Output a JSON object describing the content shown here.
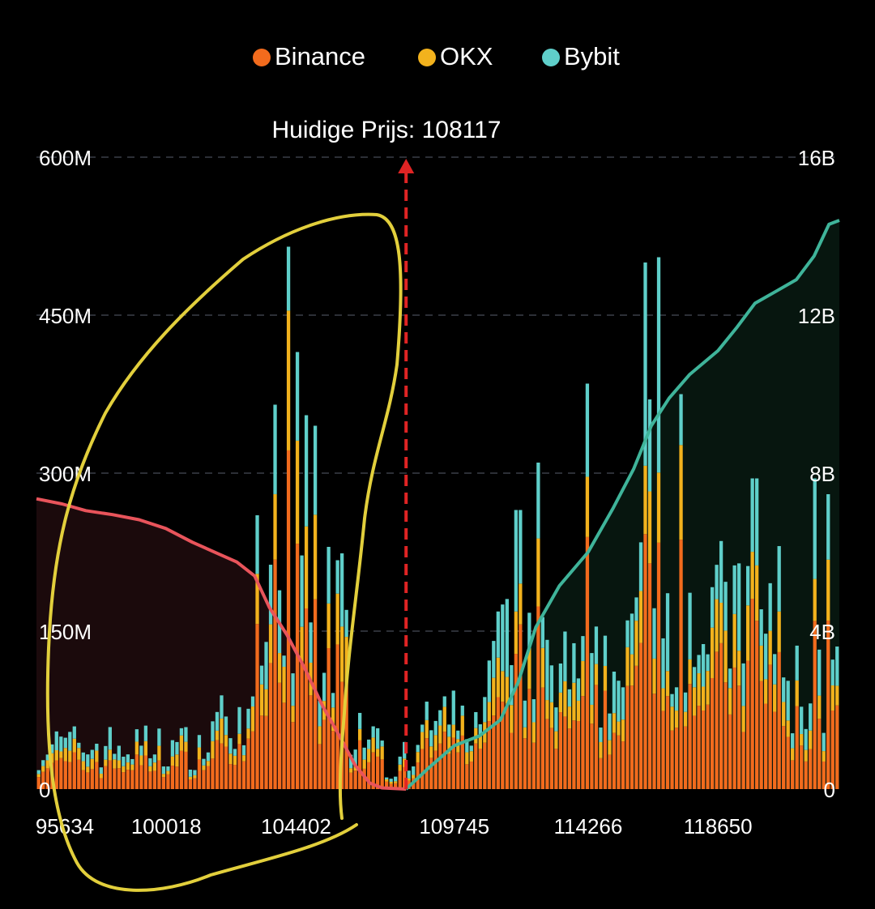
{
  "chart_data": {
    "type": "bar",
    "stacked": true,
    "legend": {
      "position": "top-center",
      "entries": [
        {
          "name": "Binance",
          "color": "#f26b1d"
        },
        {
          "name": "OKX",
          "color": "#f2b21d"
        },
        {
          "name": "Bybit",
          "color": "#5fcfca"
        }
      ]
    },
    "current_price": {
      "label": "Huidige Prijs: 108117",
      "value": 108117,
      "color": "#e02424"
    },
    "x_axis": {
      "min": 95634,
      "max": 122750,
      "tick_labels": [
        "95634",
        "100018",
        "104402",
        "109745",
        "114266",
        "118650"
      ],
      "tick_values": [
        95634,
        100018,
        104402,
        109745,
        114266,
        118650
      ]
    },
    "y_axis_left": {
      "min": 0,
      "max": 600000000,
      "tick_labels": [
        "0",
        "150M",
        "300M",
        "450M",
        "600M"
      ],
      "tick_values": [
        0,
        150000000,
        300000000,
        450000000,
        600000000
      ]
    },
    "y_axis_right": {
      "min": 0,
      "max": 16000000000,
      "tick_labels": [
        "0",
        "4B",
        "8B",
        "12B",
        "16B"
      ],
      "tick_values": [
        0,
        4000000000,
        8000000000,
        12000000000,
        16000000000
      ]
    },
    "grid": {
      "horizontal": true,
      "style": "dashed",
      "color": "#3a3f48"
    },
    "cumulative_short": {
      "name": "cumulative short liquidation",
      "color": "#e8545b",
      "fill": "#1b0a0c",
      "axis": "right",
      "points": [
        [
          95634,
          7350000000.0
        ],
        [
          96500,
          7220000000.0
        ],
        [
          97300,
          7050000000.0
        ],
        [
          98200,
          6950000000.0
        ],
        [
          99100,
          6820000000.0
        ],
        [
          100000,
          6600000000.0
        ],
        [
          100900,
          6250000000.0
        ],
        [
          101800,
          5950000000.0
        ],
        [
          102400,
          5750000000.0
        ],
        [
          103000,
          5400000000.0
        ],
        [
          103500,
          4600000000.0
        ],
        [
          104100,
          3900000000.0
        ],
        [
          104700,
          3050000000.0
        ],
        [
          105300,
          2100000000.0
        ],
        [
          105900,
          1300000000.0
        ],
        [
          106400,
          600000000.0
        ],
        [
          106900,
          150000000.0
        ],
        [
          107300,
          30000000.0
        ],
        [
          108117,
          0
        ]
      ]
    },
    "cumulative_long": {
      "name": "cumulative long liquidation",
      "color": "#3fb49a",
      "fill": "#07160f",
      "axis": "right",
      "points": [
        [
          108117,
          0
        ],
        [
          108900,
          550000000.0
        ],
        [
          109745,
          1100000000.0
        ],
        [
          110600,
          1350000000.0
        ],
        [
          111300,
          1750000000.0
        ],
        [
          111900,
          2700000000.0
        ],
        [
          112500,
          4100000000.0
        ],
        [
          113300,
          5150000000.0
        ],
        [
          114266,
          6000000000.0
        ],
        [
          115100,
          7100000000.0
        ],
        [
          115800,
          8100000000.0
        ],
        [
          116400,
          9200000000.0
        ],
        [
          117000,
          9900000000.0
        ],
        [
          117700,
          10500000000.0
        ],
        [
          118650,
          11100000000.0
        ],
        [
          119300,
          11700000000.0
        ],
        [
          119900,
          12300000000.0
        ],
        [
          120600,
          12600000000.0
        ],
        [
          121300,
          12900000000.0
        ],
        [
          121900,
          13500000000.0
        ],
        [
          122400,
          14300000000.0
        ],
        [
          122750,
          14400000000.0
        ]
      ]
    },
    "bar_spec": {
      "note": "",
      "count": 180
    },
    "bars": {
      "peaks": [
        {
          "x": 104102,
          "total": 515000000
        },
        {
          "x": 104402,
          "total": 415000000
        },
        {
          "x": 103700,
          "total": 365000000
        },
        {
          "x": 104800,
          "total": 355000000
        },
        {
          "x": 105000,
          "total": 345000000
        },
        {
          "x": 103100,
          "total": 260000000
        },
        {
          "x": 105500,
          "total": 230000000
        },
        {
          "x": 114266,
          "total": 385000000
        },
        {
          "x": 116200,
          "total": 500000000
        },
        {
          "x": 116600,
          "total": 505000000
        },
        {
          "x": 116400,
          "total": 370000000
        },
        {
          "x": 117400,
          "total": 375000000
        },
        {
          "x": 112600,
          "total": 310000000
        },
        {
          "x": 111900,
          "total": 265000000
        },
        {
          "x": 121950,
          "total": 295000000
        },
        {
          "x": 122350,
          "total": 280000000
        },
        {
          "x": 119900,
          "total": 295000000
        }
      ]
    },
    "annotation": {
      "name": "hand-drawn yellow loop",
      "color": "#e2cf3c"
    }
  }
}
